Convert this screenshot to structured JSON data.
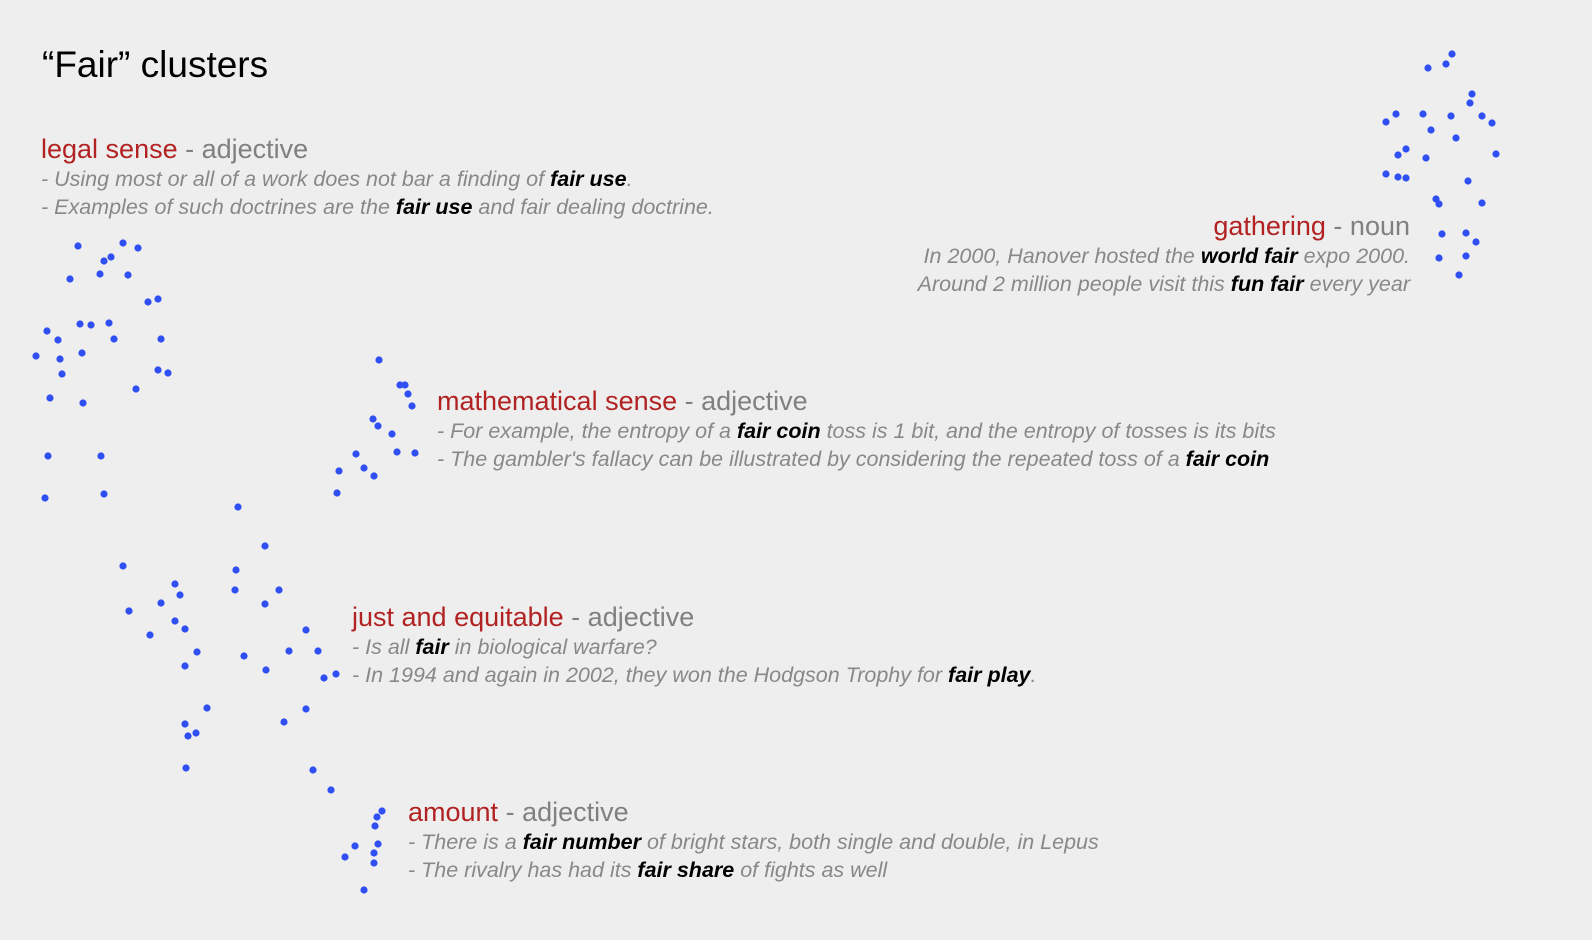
{
  "title": "“Fair” clusters",
  "colors": {
    "label": "#b22222",
    "pos": "#808080",
    "example": "#888888",
    "highlight": "#000000",
    "dot": "#2f4ff2"
  },
  "senses": [
    {
      "id": "legal-sense",
      "label": "legal sense",
      "separator": " - ",
      "pos": "adjective",
      "align": "left",
      "examples": [
        {
          "before": "- Using most or all of a work does not bar a finding of ",
          "bold": "fair use",
          "after": "."
        },
        {
          "before": "- Examples of such doctrines are the ",
          "bold": "fair use",
          "after": " and fair dealing doctrine."
        }
      ]
    },
    {
      "id": "gathering",
      "label": "gathering",
      "separator": " - ",
      "pos": "noun",
      "align": "right",
      "examples": [
        {
          "before": "In 2000, Hanover hosted the ",
          "bold": "world fair",
          "after": " expo 2000."
        },
        {
          "before": "Around 2 million people visit this ",
          "bold": "fun fair",
          "after": " every year"
        }
      ]
    },
    {
      "id": "mathematical-sense",
      "label": "mathematical sense",
      "separator": " - ",
      "pos": "adjective",
      "align": "left",
      "examples": [
        {
          "before": "- For example, the entropy of a ",
          "bold": "fair coin",
          "after": " toss is 1 bit, and the entropy of tosses is its bits"
        },
        {
          "before": "- The gambler's fallacy can be illustrated by considering the repeated toss of a ",
          "bold": "fair coin",
          "after": ""
        }
      ]
    },
    {
      "id": "just-and-equitable",
      "label": "just and equitable",
      "separator": " - ",
      "pos": "adjective",
      "align": "left",
      "examples": [
        {
          "before": "- Is all ",
          "bold": "fair",
          "after": " in biological warfare?"
        },
        {
          "before": "- In 1994 and again in 2002, they won the Hodgson Trophy for ",
          "bold": "fair play",
          "after": "."
        }
      ]
    },
    {
      "id": "amount",
      "label": "amount",
      "separator": " - ",
      "pos": "adjective",
      "align": "left",
      "examples": [
        {
          "before": "- There is a ",
          "bold": "fair number",
          "after": " of bright stars, both single and double, in Lepus"
        },
        {
          "before": "- The rivalry has had its ",
          "bold": "fair share",
          "after": " of fights as well"
        }
      ]
    }
  ]
}
